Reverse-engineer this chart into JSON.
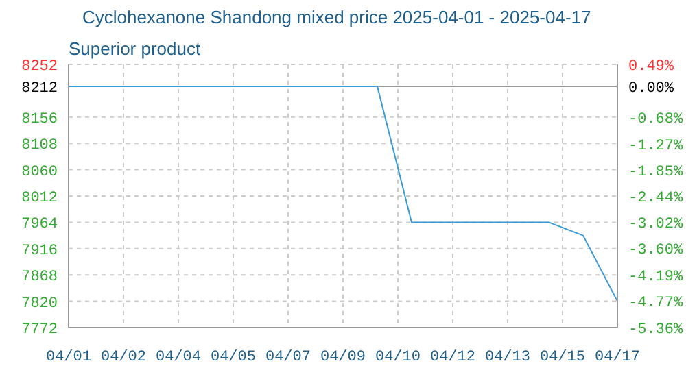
{
  "chart_data": {
    "type": "line",
    "title": "Cyclohexanone Shandong mixed price 2025-04-01 - 2025-04-17",
    "subtitle": "Superior product",
    "x": [
      "2025-04-01",
      "2025-04-02",
      "2025-04-03",
      "2025-04-04",
      "2025-04-05",
      "2025-04-06",
      "2025-04-07",
      "2025-04-08",
      "2025-04-09",
      "2025-04-10",
      "2025-04-11",
      "2025-04-12",
      "2025-04-13",
      "2025-04-14",
      "2025-04-15",
      "2025-04-16",
      "2025-04-17"
    ],
    "series": [
      {
        "color": "#3a9ad9",
        "values": [
          8212,
          8212,
          8212,
          8212,
          8212,
          8212,
          8212,
          8212,
          8212,
          8212,
          7964,
          7964,
          7964,
          7964,
          7964,
          7940,
          7820
        ]
      }
    ],
    "xlim": [
      "2025-04-01",
      "2025-04-17"
    ],
    "xticks": [
      {
        "value": "2025-04-01",
        "label": "04/01"
      },
      {
        "value": "2025-04-02T14:24",
        "label": "04/02"
      },
      {
        "value": "2025-04-04T04:48",
        "label": "04/04"
      },
      {
        "value": "2025-04-05T19:12",
        "label": "04/05"
      },
      {
        "value": "2025-04-07T09:36",
        "label": "04/07"
      },
      {
        "value": "2025-04-09",
        "label": "04/09"
      },
      {
        "value": "2025-04-10T14:24",
        "label": "04/10"
      },
      {
        "value": "2025-04-12T04:48",
        "label": "04/12"
      },
      {
        "value": "2025-04-13T19:12",
        "label": "04/13"
      },
      {
        "value": "2025-04-15T09:36",
        "label": "04/15"
      },
      {
        "value": "2025-04-17",
        "label": "04/17"
      }
    ],
    "ylim": [
      7772,
      8252
    ],
    "yticks": [
      7772,
      7820,
      7868,
      7916,
      7964,
      8012,
      8060,
      8108,
      8156,
      8212,
      8252
    ],
    "y2lim": [
      -5.36,
      0.49
    ],
    "y2ticks": [
      {
        "value": -5.36,
        "label": "-5.36%"
      },
      {
        "value": -4.77,
        "label": "-4.77%"
      },
      {
        "value": -4.19,
        "label": "-4.19%"
      },
      {
        "value": -3.6,
        "label": "-3.60%"
      },
      {
        "value": -3.02,
        "label": "-3.02%"
      },
      {
        "value": -2.44,
        "label": "-2.44%"
      },
      {
        "value": -1.85,
        "label": "-1.85%"
      },
      {
        "value": -1.27,
        "label": "-1.27%"
      },
      {
        "value": -0.68,
        "label": "-0.68%"
      },
      {
        "value": 0,
        "label": "0.00%"
      },
      {
        "value": 0.49,
        "label": "0.49%"
      }
    ],
    "ref_lines": [
      {
        "axis": "y",
        "value": 8212,
        "color": "#999999"
      }
    ],
    "grid": true,
    "marker": "none",
    "line_style": "solid"
  }
}
